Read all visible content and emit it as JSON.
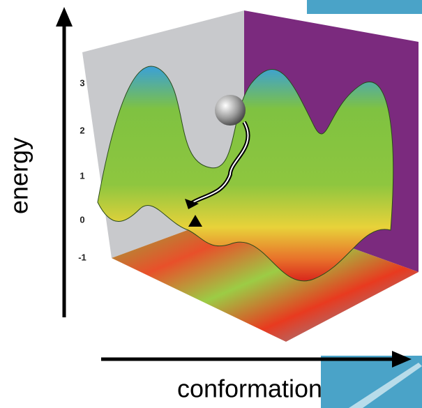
{
  "axes": {
    "y_label": "energy",
    "x_label": "conformation"
  },
  "ticks": [
    "3",
    "2",
    "1",
    "0",
    "-1"
  ]
}
